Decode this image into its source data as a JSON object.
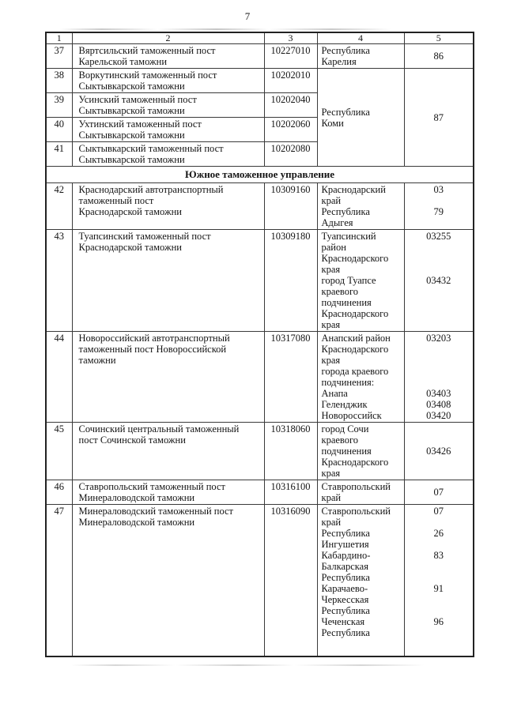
{
  "page": {
    "number": "7"
  },
  "colors": {
    "ink": "#141414",
    "paper": "#ffffff",
    "border": "#333333"
  },
  "table": {
    "headers": [
      "1",
      "2",
      "3",
      "4",
      "5"
    ],
    "rows": [
      {
        "type": "post",
        "num": "37",
        "name": [
          "Вяртсильский таможенный пост",
          "Карельской таможни"
        ],
        "code": "10227010",
        "region": {
          "lines": [
            "Республика",
            "Карелия"
          ],
          "rowspan": 1,
          "middle": false
        },
        "codes": {
          "lines": [
            "86"
          ],
          "rowspan": 1,
          "middle": true
        }
      },
      {
        "type": "post",
        "num": "38",
        "name": [
          "Воркутинский таможенный пост",
          "Сыктывкарской таможни"
        ],
        "code": "10202010",
        "region": {
          "lines": [
            "Республика",
            "Коми"
          ],
          "rowspan": 4,
          "middle": true
        },
        "codes": {
          "lines": [
            "87"
          ],
          "rowspan": 4,
          "middle": true
        }
      },
      {
        "type": "post",
        "num": "39",
        "name": [
          "Усинский таможенный пост",
          "Сыктывкарской таможни"
        ],
        "code": "10202040"
      },
      {
        "type": "post",
        "num": "40",
        "name": [
          "Ухтинский таможенный пост",
          "Сыктывкарской таможни"
        ],
        "code": "10202060"
      },
      {
        "type": "post",
        "num": "41",
        "name": [
          "Сыктывкарский таможенный пост",
          "Сыктывкарской таможни"
        ],
        "code": "10202080"
      },
      {
        "type": "section",
        "label": "Южное таможенное управление"
      },
      {
        "type": "post",
        "num": "42",
        "name": [
          "Краснодарский автотранспортный",
          "таможенный пост",
          "Краснодарской таможни"
        ],
        "code": "10309160",
        "region": {
          "lines": [
            "Краснодарский",
            "край",
            "Республика",
            "Адыгея"
          ]
        },
        "codes": {
          "lines": [
            "03",
            "",
            "79",
            ""
          ]
        }
      },
      {
        "type": "post",
        "num": "43",
        "name": [
          "Туапсинский таможенный пост",
          "Краснодарской таможни"
        ],
        "code": "10309180",
        "region": {
          "lines": [
            "Туапсинский",
            "район",
            "Краснодарского",
            "края",
            "город Туапсе",
            "краевого",
            "подчинения",
            "Краснодарского",
            "края"
          ]
        },
        "codes": {
          "lines": [
            "03255",
            "",
            "",
            "",
            "03432",
            "",
            "",
            "",
            ""
          ]
        }
      },
      {
        "type": "post",
        "num": "44",
        "name": [
          "Новороссийский автотранспортный",
          "таможенный пост Новороссийской",
          "таможни"
        ],
        "code": "10317080",
        "region": {
          "lines": [
            "Анапский район",
            "Краснодарского",
            "края",
            "города краевого",
            "подчинения:",
            "Анапа",
            "Геленджик",
            "Новороссийск"
          ]
        },
        "codes": {
          "lines": [
            "03203",
            "",
            "",
            "",
            "",
            "03403",
            "03408",
            "03420"
          ]
        }
      },
      {
        "type": "post",
        "num": "45",
        "name": [
          "Сочинский центральный таможенный",
          "пост Сочинской таможни"
        ],
        "code": "10318060",
        "region": {
          "lines": [
            "город Сочи",
            "краевого",
            "подчинения",
            "Краснодарского",
            "края"
          ]
        },
        "codes": {
          "lines": [
            "",
            "",
            "03426",
            "",
            ""
          ]
        }
      },
      {
        "type": "post",
        "num": "46",
        "name": [
          "Ставропольский таможенный пост",
          "Минераловодской таможни"
        ],
        "code": "10316100",
        "region": {
          "lines": [
            "Ставропольский",
            "край"
          ]
        },
        "codes": {
          "lines": [
            "07"
          ],
          "middle": true
        }
      },
      {
        "type": "post",
        "num": "47",
        "name": [
          "Минераловодский таможенный пост",
          "Минераловодской таможни"
        ],
        "code": "10316090",
        "region": {
          "lines": [
            "Ставропольский",
            "край",
            "Республика",
            "Ингушетия",
            "Кабардино-",
            "Балкарская",
            "Республика",
            "Карачаево-",
            "Черкесская",
            "Республика",
            "Чеченская",
            "Республика"
          ]
        },
        "codes": {
          "lines": [
            "07",
            "",
            "26",
            "",
            "83",
            "",
            "",
            "91",
            "",
            "",
            "96",
            ""
          ]
        },
        "pad_bottom": true
      }
    ]
  }
}
